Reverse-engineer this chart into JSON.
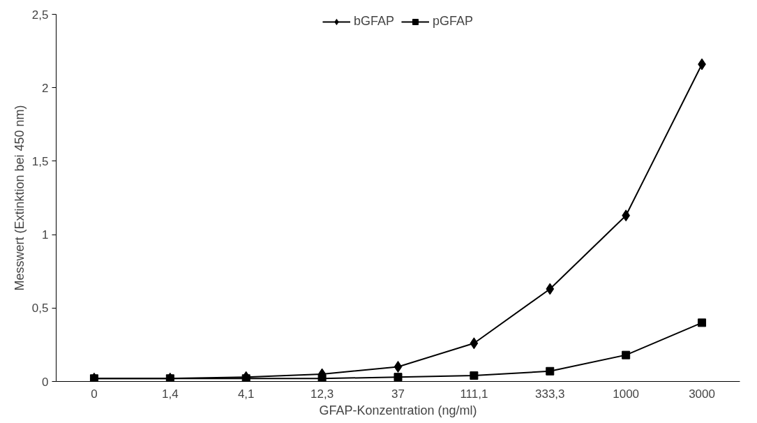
{
  "chart_data": {
    "type": "line",
    "xlabel": "GFAP-Konzentration (ng/ml)",
    "ylabel": "Messwert (Extinktion bei 450 nm)",
    "categories": [
      "0",
      "1,4",
      "4,1",
      "12,3",
      "37",
      "111,1",
      "333,3",
      "1000",
      "3000"
    ],
    "series": [
      {
        "name": "bGFAP",
        "color": "#000000",
        "marker": "diamond",
        "values": [
          0.02,
          0.02,
          0.03,
          0.05,
          0.1,
          0.26,
          0.63,
          1.13,
          2.16
        ]
      },
      {
        "name": "pGFAP",
        "color": "#000000",
        "marker": "square",
        "values": [
          0.02,
          0.02,
          0.02,
          0.02,
          0.03,
          0.04,
          0.07,
          0.18,
          0.4
        ]
      }
    ],
    "ylim": [
      0,
      2.5
    ],
    "yticks": [
      0,
      {
        "value": 0.5,
        "label": "0,5"
      },
      1,
      {
        "value": 1.5,
        "label": "1,5"
      },
      2,
      {
        "value": 2.5,
        "label": "2,5"
      }
    ],
    "grid": false,
    "legend": "top",
    "line_style": "solid"
  }
}
